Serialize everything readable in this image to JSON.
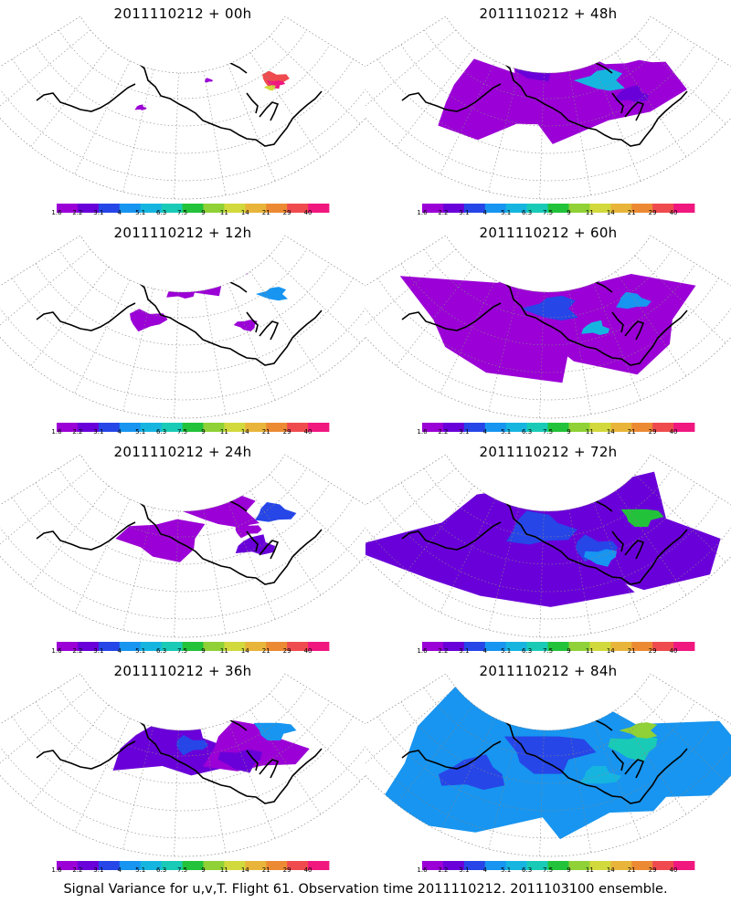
{
  "caption": "Signal Variance for u,v,T. Flight 61. Observation time 2011110212. 2011103100 ensemble.",
  "chart_data": {
    "type": "heatmap",
    "colorbar": {
      "levels": [
        "1.6",
        "2.2",
        "3.1",
        "4",
        "5.1",
        "6.3",
        "7.5",
        "9",
        "11",
        "14",
        "21",
        "29",
        "40"
      ],
      "colors": [
        "#9b00d6",
        "#6a00d9",
        "#2646e8",
        "#1795f0",
        "#16b5e0",
        "#19cbb6",
        "#22c33a",
        "#8fd136",
        "#d2d93c",
        "#e8b53a",
        "#ec8a34",
        "#ef4b4f",
        "#f0177f"
      ]
    },
    "panels": [
      {
        "title": "2011110212 + 00h",
        "max_level": "40"
      },
      {
        "title": "2011110212 + 48h",
        "max_level": "9"
      },
      {
        "title": "2011110212 + 12h",
        "max_level": "5.1"
      },
      {
        "title": "2011110212 + 60h",
        "max_level": "6.3"
      },
      {
        "title": "2011110212 + 24h",
        "max_level": "4"
      },
      {
        "title": "2011110212 + 72h",
        "max_level": "9"
      },
      {
        "title": "2011110212 + 36h",
        "max_level": "5.1"
      },
      {
        "title": "2011110212 + 84h",
        "max_level": "11"
      }
    ]
  }
}
